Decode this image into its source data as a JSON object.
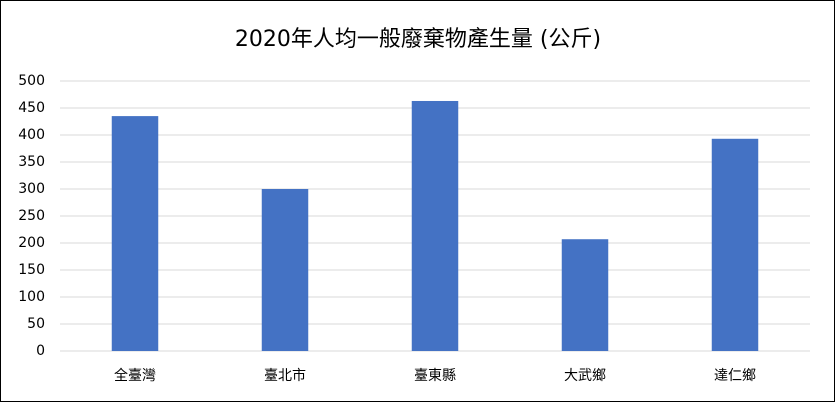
{
  "chart_data": {
    "type": "bar",
    "title": "2020年人均一般廢棄物產生量 (公斤)",
    "categories": [
      "全臺灣",
      "臺北市",
      "臺東縣",
      "大武鄉",
      "達仁鄉"
    ],
    "values": [
      435,
      300,
      463,
      207,
      393
    ],
    "color": "#4472c4",
    "ylim": [
      0,
      500
    ],
    "yticks": [
      0,
      50,
      100,
      150,
      200,
      250,
      300,
      350,
      400,
      450,
      500
    ],
    "grid": true
  }
}
